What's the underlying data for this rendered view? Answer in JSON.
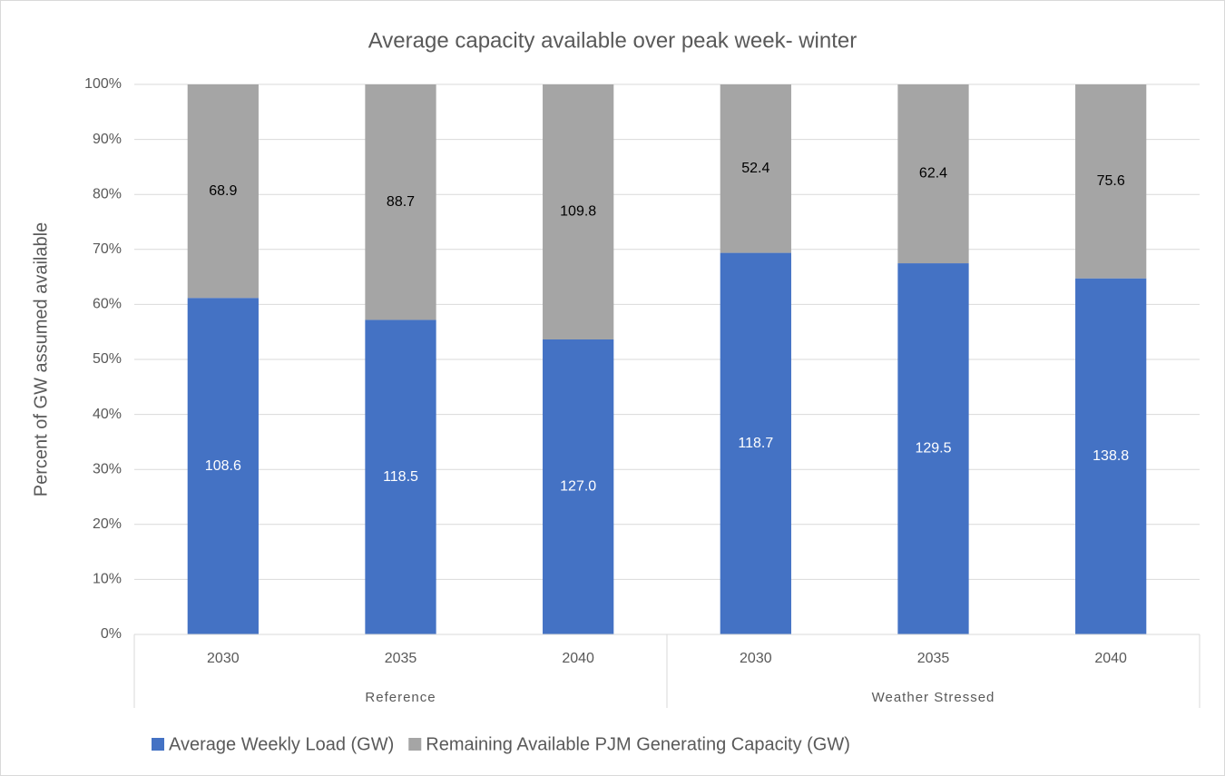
{
  "chart_data": {
    "type": "bar",
    "stacking": "percent",
    "title": "Average capacity available over peak week- winter",
    "y_label": "Percent of GW assumed available",
    "category_groups": [
      {
        "name": "Reference",
        "categories": [
          "2030",
          "2035",
          "2040"
        ]
      },
      {
        "name": "Weather Stressed",
        "categories": [
          "2030",
          "2035",
          "2040"
        ]
      }
    ],
    "series": [
      {
        "name": "Average Weekly Load (GW)",
        "color": "#4472c4",
        "label_color": "#ffffff",
        "values": [
          108.6,
          118.5,
          127.0,
          118.7,
          129.5,
          138.8
        ],
        "value_labels": [
          "108.6",
          "118.5",
          "127.0",
          "118.7",
          "129.5",
          "138.8"
        ]
      },
      {
        "name": "Remaining Available PJM Generating Capacity (GW)",
        "color": "#a5a5a5",
        "label_color": "#000000",
        "values": [
          68.9,
          88.7,
          109.8,
          52.4,
          62.4,
          75.6
        ]
      }
    ],
    "ylim": [
      0,
      100
    ],
    "yticks": [
      {
        "value": 0,
        "label": "0%"
      },
      {
        "value": 10,
        "label": "10%"
      },
      {
        "value": 20,
        "label": "20%"
      },
      {
        "value": 30,
        "label": "30%"
      },
      {
        "value": 40,
        "label": "40%"
      },
      {
        "value": 50,
        "label": "50%"
      },
      {
        "value": 60,
        "label": "60%"
      },
      {
        "value": 70,
        "label": "70%"
      },
      {
        "value": 80,
        "label": "80%"
      },
      {
        "value": 90,
        "label": "90%"
      },
      {
        "value": 100,
        "label": "100%"
      }
    ],
    "grid": true,
    "legend": "bottom"
  }
}
